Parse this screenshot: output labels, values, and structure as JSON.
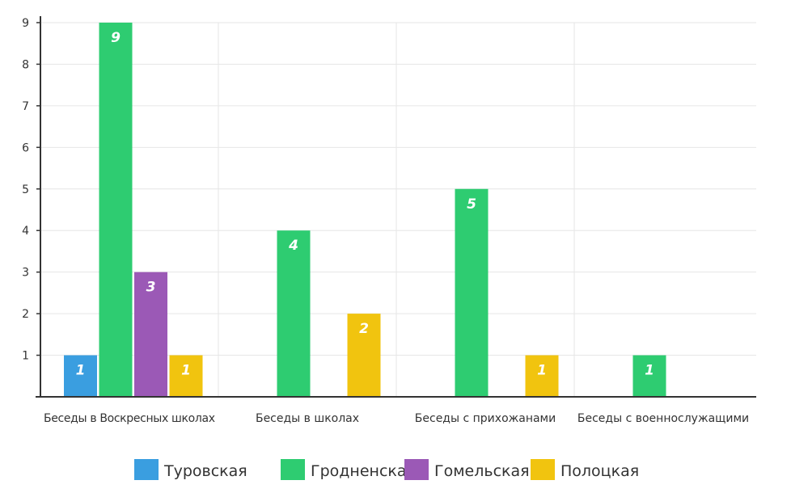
{
  "chart_data": {
    "type": "bar",
    "categories": [
      "Беседы в Воскресных школах",
      "Беседы в школах",
      "Беседы с прихожанами",
      "Беседы с военнослужащими"
    ],
    "series": [
      {
        "name": "Туровская",
        "color": "#3a9ee0",
        "values": [
          1,
          null,
          null,
          null
        ]
      },
      {
        "name": "Гродненская",
        "color": "#2ecc71",
        "values": [
          9,
          4,
          5,
          1
        ]
      },
      {
        "name": "Гомельская",
        "color": "#9b59b6",
        "values": [
          3,
          null,
          null,
          null
        ]
      },
      {
        "name": "Полоцкая",
        "color": "#f1c40f",
        "values": [
          1,
          2,
          1,
          null
        ]
      }
    ],
    "y_ticks": [
      1,
      2,
      3,
      4,
      5,
      6,
      7,
      8,
      9
    ],
    "ylim": [
      0,
      9
    ],
    "grid": true,
    "legend_position": "bottom",
    "title": "",
    "xlabel": "",
    "ylabel": ""
  }
}
